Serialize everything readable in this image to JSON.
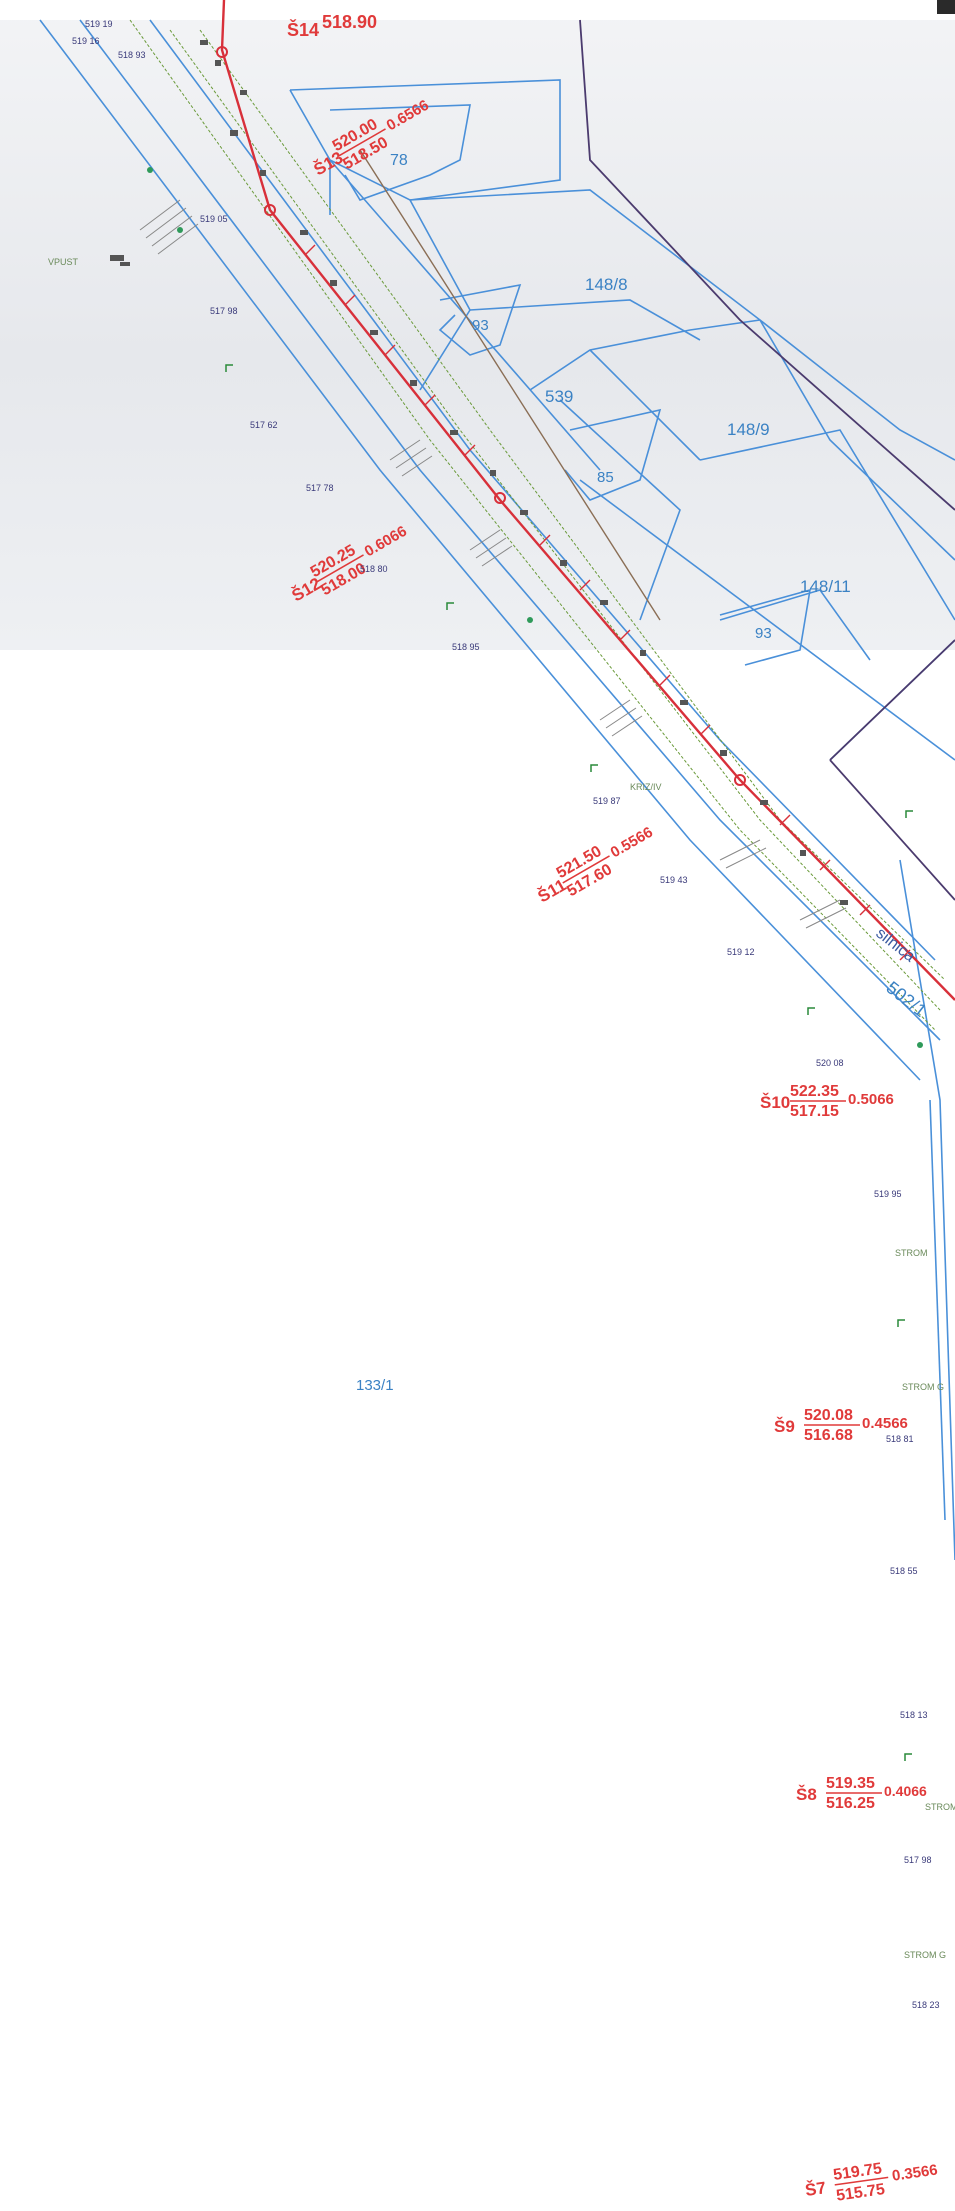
{
  "map": {
    "parcels": [
      {
        "label": "78"
      },
      {
        "label": "148/8"
      },
      {
        "label": "93"
      },
      {
        "label": "539"
      },
      {
        "label": "148/9"
      },
      {
        "label": "85"
      },
      {
        "label": "148/11"
      },
      {
        "label": "93"
      },
      {
        "label": "133/1"
      },
      {
        "label": "502/1"
      }
    ],
    "road_label": "silnica",
    "stations": [
      {
        "id": "Š14",
        "top": "",
        "bottom": "518.90",
        "slope": ""
      },
      {
        "id": "Š13",
        "top": "520.00",
        "bottom": "518.50",
        "slope": "0.6566"
      },
      {
        "id": "Š12",
        "top": "520.25",
        "bottom": "518.00",
        "slope": "0.6066"
      },
      {
        "id": "Š11",
        "top": "521.50",
        "bottom": "517.60",
        "slope": "0.5566"
      },
      {
        "id": "Š10",
        "top": "522.35",
        "bottom": "517.15",
        "slope": "0.5066"
      },
      {
        "id": "Š9",
        "top": "520.08",
        "bottom": "516.68",
        "slope": "0.4566"
      },
      {
        "id": "Š8",
        "top": "519.35",
        "bottom": "516.25",
        "slope": "0.4066"
      },
      {
        "id": "Š7",
        "top": "519.75",
        "bottom": "515.75",
        "slope": "0.3566"
      }
    ],
    "elevations": [
      {
        "text": "519 19"
      },
      {
        "text": "519 16"
      },
      {
        "text": "518 93"
      },
      {
        "text": "519 05"
      },
      {
        "text": "517 98"
      },
      {
        "text": "517 62"
      },
      {
        "text": "517 78"
      },
      {
        "text": "518 80"
      },
      {
        "text": "518 95"
      },
      {
        "text": "519 87"
      },
      {
        "text": "519 43"
      },
      {
        "text": "519 12"
      },
      {
        "text": "520 08"
      },
      {
        "text": "519 95"
      },
      {
        "text": "518 81"
      },
      {
        "text": "518 55"
      },
      {
        "text": "518 13"
      },
      {
        "text": "517 98"
      },
      {
        "text": "518 23"
      }
    ],
    "feature_labels": [
      {
        "text": "VPUST"
      },
      {
        "text": "KRIZ/IV"
      },
      {
        "text": "STROM"
      },
      {
        "text": "STROM G"
      },
      {
        "text": "STROM G"
      },
      {
        "text": "STROM"
      }
    ],
    "colors": {
      "parcel_lines": "#4a90d9",
      "pipeline": "#d8303a",
      "elevation_text": "#3a3a7a",
      "vegetation": "#6a9a3a",
      "scan_gray": "#e8e9ec"
    }
  }
}
